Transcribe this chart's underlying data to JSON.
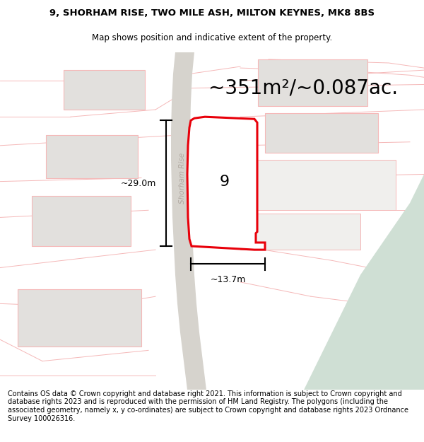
{
  "title_line1": "9, SHORHAM RISE, TWO MILE ASH, MILTON KEYNES, MK8 8BS",
  "title_line2": "Map shows position and indicative extent of the property.",
  "area_text": "~351m²/~0.087ac.",
  "label_number": "9",
  "dim_width": "~13.7m",
  "dim_height": "~29.0m",
  "road_label": "Shorham Rise",
  "footer_text": "Contains OS data © Crown copyright and database right 2021. This information is subject to Crown copyright and database rights 2023 and is reproduced with the permission of HM Land Registry. The polygons (including the associated geometry, namely x, y co-ordinates) are subject to Crown copyright and database rights 2023 Ordnance Survey 100026316.",
  "bg_color": "#ffffff",
  "map_bg": "#f0efed",
  "plot_stroke": "#e8000a",
  "other_plots_stroke": "#f5b8b8",
  "road_color": "#d6d3cd",
  "green_fill": "#cfdfd4",
  "gray_block": "#e2e0dd",
  "title_fontsize": 9.5,
  "subtitle_fontsize": 8.5,
  "area_fontsize": 20,
  "label_fontsize": 16,
  "dim_fontsize": 9,
  "footer_fontsize": 7.0,
  "road_label_fontsize": 7.5,
  "road_label_color": "#b0a8a0"
}
